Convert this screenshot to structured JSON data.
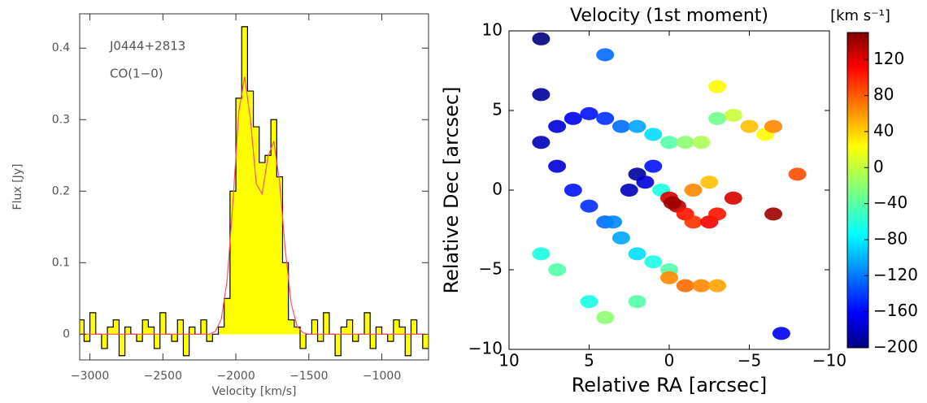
{
  "chart_data": [
    {
      "type": "step",
      "xlabel": "Velocity [km/s]",
      "ylabel": "Flux [Jy]",
      "annotations": [
        "J0444+2813",
        "CO(1−0)"
      ],
      "x": [
        -3060,
        -3020,
        -2980,
        -2940,
        -2900,
        -2860,
        -2820,
        -2780,
        -2740,
        -2700,
        -2660,
        -2620,
        -2580,
        -2540,
        -2500,
        -2460,
        -2420,
        -2380,
        -2340,
        -2300,
        -2260,
        -2220,
        -2180,
        -2140,
        -2100,
        -2060,
        -2020,
        -1980,
        -1940,
        -1900,
        -1860,
        -1820,
        -1780,
        -1740,
        -1700,
        -1660,
        -1620,
        -1580,
        -1540,
        -1500,
        -1460,
        -1420,
        -1380,
        -1340,
        -1300,
        -1260,
        -1220,
        -1180,
        -1140,
        -1100,
        -1060,
        -1020,
        -980,
        -940,
        -900,
        -860,
        -820,
        -780,
        -740,
        -700
      ],
      "series": [
        {
          "style": "step",
          "color": "#000000",
          "fill": "#ffff00",
          "values": [
            0.02,
            -0.01,
            0.03,
            0.0,
            -0.02,
            0.01,
            0.02,
            -0.03,
            0.01,
            0.0,
            -0.01,
            0.02,
            0.01,
            -0.02,
            0.03,
            0.0,
            -0.01,
            0.02,
            -0.03,
            0.01,
            0.0,
            0.02,
            -0.01,
            0.0,
            0.01,
            0.05,
            0.2,
            0.33,
            0.43,
            0.34,
            0.29,
            0.24,
            0.25,
            0.3,
            0.22,
            0.1,
            0.02,
            0.01,
            -0.02,
            0.0,
            0.02,
            -0.01,
            0.03,
            0.0,
            -0.03,
            0.01,
            0.02,
            -0.01,
            0.0,
            0.03,
            -0.02,
            0.01,
            0.0,
            -0.01,
            0.02,
            0.01,
            -0.03,
            0.02,
            0.0,
            -0.02
          ]
        },
        {
          "style": "line",
          "color": "#ff4d6a",
          "values": [
            0,
            0,
            0,
            0,
            0,
            0,
            0,
            0,
            0,
            0,
            0,
            0,
            0,
            0,
            0,
            0,
            0,
            0,
            0,
            0,
            0,
            0,
            0,
            0.004,
            0.021,
            0.075,
            0.185,
            0.311,
            0.36,
            0.3,
            0.21,
            0.196,
            0.248,
            0.27,
            0.212,
            0.115,
            0.042,
            0.011,
            0.002,
            0,
            0,
            0,
            0,
            0,
            0,
            0,
            0,
            0,
            0,
            0,
            0,
            0,
            0,
            0,
            0,
            0,
            0,
            0,
            0,
            0
          ]
        }
      ],
      "xlim": [
        -3070,
        -680
      ],
      "xticks": [
        {
          "value": -3000,
          "label": "−3000"
        },
        {
          "value": -2500,
          "label": "−2500"
        },
        {
          "value": -2000,
          "label": "−2000"
        },
        {
          "value": -1500,
          "label": "−1500"
        },
        {
          "value": -1000,
          "label": "−1000"
        }
      ],
      "ylim": [
        -0.036,
        0.448
      ],
      "yticks": [
        0,
        0.1,
        0.2,
        0.3,
        0.4
      ]
    },
    {
      "type": "scatter",
      "title": "Velocity (1st moment)",
      "xlabel": "Relative RA [arcsec]",
      "ylabel": "Relative Dec [arcsec]",
      "colorbar_label": "[km s⁻¹]",
      "colormap": "jet",
      "x": [
        2,
        1.5,
        2.5,
        1,
        0.5,
        0,
        -0.5,
        -1,
        -1.5,
        -2.5,
        -3,
        -1.5,
        -2.5,
        -0.2,
        8,
        7,
        6,
        5,
        4,
        3,
        2,
        1,
        0,
        -1,
        -2,
        -3,
        -4,
        7,
        6,
        5,
        4,
        3,
        2,
        1,
        0,
        3.5,
        0,
        -1,
        -2,
        -3,
        -6.5,
        -4,
        -5,
        -6,
        -6.5,
        8,
        7,
        5,
        4,
        2,
        8,
        4,
        -3,
        -7,
        8,
        -8
      ],
      "y": [
        1,
        0.5,
        0,
        1.5,
        0,
        -0.5,
        -1,
        -1.5,
        -2,
        -2,
        -1.5,
        0,
        0.5,
        -0.8,
        3,
        4,
        4.5,
        4.8,
        4.5,
        4,
        4,
        3.5,
        3,
        3,
        3,
        4.5,
        4.7,
        1.5,
        0,
        -1,
        -2,
        -3,
        -4,
        -4.5,
        -5,
        -2,
        -5.5,
        -6,
        -6,
        -6,
        -1.5,
        -0.5,
        4,
        3.5,
        4,
        -4,
        -5,
        -7,
        -8,
        -7,
        9.5,
        8.5,
        6.5,
        -9,
        6,
        1
      ],
      "c": [
        -190,
        -170,
        -180,
        -150,
        -60,
        120,
        130,
        100,
        90,
        110,
        100,
        60,
        40,
        140,
        -180,
        -170,
        -160,
        -150,
        -140,
        -120,
        -100,
        -80,
        -40,
        -20,
        -10,
        -30,
        0,
        -170,
        -150,
        -140,
        -120,
        -100,
        -80,
        -60,
        -40,
        -110,
        60,
        70,
        60,
        50,
        140,
        120,
        40,
        20,
        60,
        -60,
        -40,
        -60,
        -20,
        -40,
        -200,
        -120,
        20,
        -160,
        -190,
        80
      ],
      "xlim": [
        10,
        -10
      ],
      "ylim": [
        -10,
        10
      ],
      "xticks": [
        10,
        5,
        0,
        {
          "value": -5,
          "label": "−5"
        },
        {
          "value": -10,
          "label": "−10"
        }
      ],
      "yticks": [
        {
          "value": -10,
          "label": "−10"
        },
        {
          "value": -5,
          "label": "−5"
        },
        0,
        5,
        10
      ],
      "clim": [
        -200,
        150
      ],
      "cticks": [
        {
          "value": -200,
          "label": "−200"
        },
        {
          "value": -160,
          "label": "−160"
        },
        {
          "value": -120,
          "label": "−120"
        },
        {
          "value": -80,
          "label": "−80"
        },
        {
          "value": -40,
          "label": "−40"
        },
        0,
        40,
        80,
        120
      ]
    }
  ]
}
